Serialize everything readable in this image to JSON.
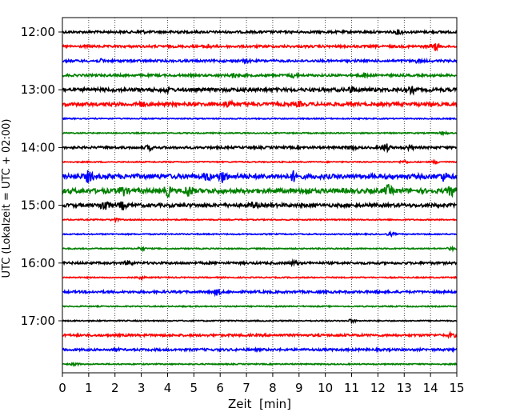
{
  "chart_data": {
    "type": "line",
    "title": "",
    "xlabel": "Zeit  [min]",
    "ylabel": "UTC (Lokalzeit = UTC + 02:00)",
    "xlim": [
      0,
      15
    ],
    "x_ticks": [
      "0",
      "1",
      "2",
      "3",
      "4",
      "5",
      "6",
      "7",
      "8",
      "9",
      "10",
      "11",
      "12",
      "13",
      "14",
      "15"
    ],
    "y_tick_labels": [
      "12:00",
      "13:00",
      "14:00",
      "15:00",
      "16:00",
      "17:00"
    ],
    "grid": "vertical dotted",
    "legend": "none",
    "trace_colors": [
      "#000000",
      "#ff0000",
      "#0000ff",
      "#008000"
    ],
    "traces": [
      {
        "start": "12:00",
        "color": "#000000",
        "amplitude": 2,
        "bursts": [
          [
            3,
            2
          ],
          [
            4.3,
            2
          ],
          [
            12.8,
            3
          ]
        ]
      },
      {
        "start": "12:15",
        "color": "#ff0000",
        "amplitude": 2,
        "bursts": [
          [
            5.5,
            3
          ],
          [
            14.2,
            5
          ]
        ]
      },
      {
        "start": "12:30",
        "color": "#0000ff",
        "amplitude": 2,
        "bursts": [
          [
            1.5,
            2
          ],
          [
            7,
            2
          ],
          [
            13.5,
            2
          ]
        ]
      },
      {
        "start": "12:45",
        "color": "#008000",
        "amplitude": 2,
        "bursts": [
          [
            6.5,
            3
          ],
          [
            8.8,
            3
          ],
          [
            11.5,
            3
          ]
        ]
      },
      {
        "start": "13:00",
        "color": "#000000",
        "amplitude": 3,
        "bursts": [
          [
            4,
            3
          ],
          [
            11,
            4
          ],
          [
            13.3,
            4
          ]
        ]
      },
      {
        "start": "13:15",
        "color": "#ff0000",
        "amplitude": 3,
        "bursts": [
          [
            3,
            3
          ],
          [
            6.3,
            5
          ],
          [
            9,
            3
          ]
        ]
      },
      {
        "start": "13:30",
        "color": "#0000ff",
        "amplitude": 1,
        "bursts": []
      },
      {
        "start": "13:45",
        "color": "#008000",
        "amplitude": 1,
        "bursts": [
          [
            14.5,
            2
          ]
        ]
      },
      {
        "start": "14:00",
        "color": "#000000",
        "amplitude": 2,
        "bursts": [
          [
            3.3,
            3
          ],
          [
            11,
            3
          ],
          [
            12.3,
            5
          ],
          [
            13.2,
            3
          ]
        ]
      },
      {
        "start": "14:15",
        "color": "#ff0000",
        "amplitude": 1,
        "bursts": [
          [
            13,
            2
          ],
          [
            14.2,
            2
          ]
        ]
      },
      {
        "start": "14:30",
        "color": "#0000ff",
        "amplitude": 4,
        "bursts": [
          [
            1,
            7
          ],
          [
            5.5,
            5
          ],
          [
            6.1,
            7
          ],
          [
            8.8,
            6
          ],
          [
            14.5,
            5
          ]
        ]
      },
      {
        "start": "14:45",
        "color": "#008000",
        "amplitude": 4,
        "bursts": [
          [
            2.3,
            6
          ],
          [
            4,
            6
          ],
          [
            4.8,
            7
          ],
          [
            9.3,
            4
          ],
          [
            12.4,
            6
          ],
          [
            14.8,
            6
          ]
        ]
      },
      {
        "start": "15:00",
        "color": "#000000",
        "amplitude": 3,
        "bursts": [
          [
            1.6,
            8
          ],
          [
            2.3,
            5
          ],
          [
            7.3,
            4
          ]
        ]
      },
      {
        "start": "15:15",
        "color": "#ff0000",
        "amplitude": 1,
        "bursts": [
          [
            2,
            2
          ]
        ]
      },
      {
        "start": "15:30",
        "color": "#0000ff",
        "amplitude": 1,
        "bursts": [
          [
            12.5,
            2
          ]
        ]
      },
      {
        "start": "15:45",
        "color": "#008000",
        "amplitude": 1,
        "bursts": [
          [
            3,
            2
          ],
          [
            14.8,
            2
          ]
        ]
      },
      {
        "start": "16:00",
        "color": "#000000",
        "amplitude": 2,
        "bursts": [
          [
            2.5,
            3
          ],
          [
            8.8,
            3
          ]
        ]
      },
      {
        "start": "16:15",
        "color": "#ff0000",
        "amplitude": 1,
        "bursts": [
          [
            3,
            2
          ]
        ]
      },
      {
        "start": "16:30",
        "color": "#0000ff",
        "amplitude": 2,
        "bursts": [
          [
            5.9,
            4
          ],
          [
            12,
            2
          ]
        ]
      },
      {
        "start": "16:45",
        "color": "#008000",
        "amplitude": 1,
        "bursts": []
      },
      {
        "start": "17:00",
        "color": "#000000",
        "amplitude": 1,
        "bursts": [
          [
            11,
            2
          ]
        ]
      },
      {
        "start": "17:15",
        "color": "#ff0000",
        "amplitude": 2,
        "bursts": [
          [
            14.8,
            3
          ]
        ]
      },
      {
        "start": "17:30",
        "color": "#0000ff",
        "amplitude": 2,
        "bursts": [
          [
            2,
            2
          ]
        ]
      },
      {
        "start": "17:45",
        "color": "#008000",
        "amplitude": 1,
        "bursts": [
          [
            0.5,
            2
          ]
        ]
      }
    ]
  }
}
